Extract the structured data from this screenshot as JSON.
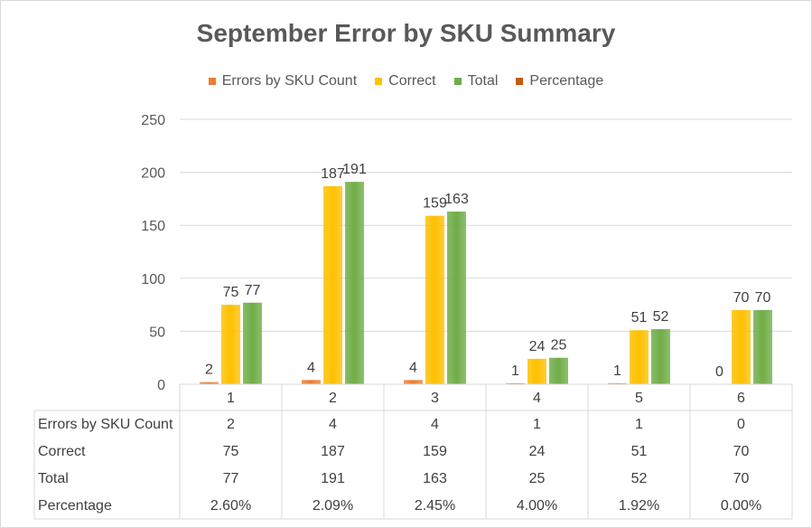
{
  "chart_data": {
    "type": "bar",
    "title": "September Error by SKU Summary",
    "categories": [
      "1",
      "2",
      "3",
      "4",
      "5",
      "6"
    ],
    "series": [
      {
        "name": "Errors by SKU Count",
        "color": "#ed7d31",
        "values": [
          2,
          4,
          4,
          1,
          1,
          0
        ],
        "table_values": [
          "2",
          "4",
          "4",
          "1",
          "1",
          "0"
        ],
        "plotted": true
      },
      {
        "name": "Correct",
        "color": "#ffc000",
        "values": [
          75,
          187,
          159,
          24,
          51,
          70
        ],
        "table_values": [
          "75",
          "187",
          "159",
          "24",
          "51",
          "70"
        ],
        "plotted": true
      },
      {
        "name": "Total",
        "color": "#70ad47",
        "values": [
          77,
          191,
          163,
          25,
          52,
          70
        ],
        "table_values": [
          "77",
          "191",
          "163",
          "25",
          "52",
          "70"
        ],
        "plotted": true
      },
      {
        "name": "Percentage",
        "color": "#c55a11",
        "values": [
          0.026,
          0.0209,
          0.0245,
          0.04,
          0.0192,
          0.0
        ],
        "table_values": [
          "2.60%",
          "2.09%",
          "2.45%",
          "4.00%",
          "1.92%",
          "0.00%"
        ],
        "plotted": false
      }
    ],
    "ylim": [
      0,
      250
    ],
    "yticks": [
      "0",
      "50",
      "100",
      "150",
      "200",
      "250"
    ],
    "grid": true,
    "legend": "top",
    "data_table": true
  }
}
